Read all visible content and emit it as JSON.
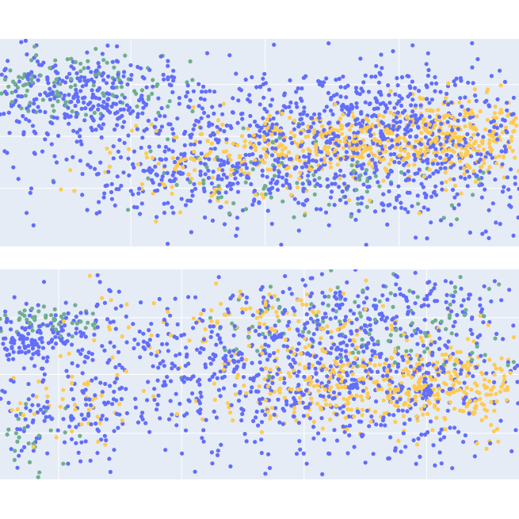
{
  "chart_data": [
    {
      "type": "scatter",
      "title": "",
      "xlabel": "",
      "ylabel": "",
      "xlim": [
        0,
        100
      ],
      "ylim": [
        0,
        100
      ],
      "grid": true,
      "legend": "none",
      "plot_bg": "#e5ecf6",
      "grid_color": "#ffffff",
      "x_gridlines": [
        25.2,
        51.1,
        76.9
      ],
      "y_gridlines": [
        28.0,
        53.0,
        78.0
      ],
      "series": [
        {
          "color": "#636efa",
          "clusters": [
            {
              "c": [
                14,
                73
              ],
              "s": [
                12,
                11
              ],
              "n": 320,
              "seed": 11
            },
            {
              "c": [
                55,
                48
              ],
              "s": [
                20,
                17
              ],
              "n": 420,
              "seed": 12
            },
            {
              "c": [
                80,
                45
              ],
              "s": [
                16,
                19
              ],
              "n": 420,
              "seed": 13
            },
            {
              "c": [
                38,
                35
              ],
              "s": [
                14,
                12
              ],
              "n": 180,
              "seed": 14
            },
            {
              "c": [
                70,
                70
              ],
              "s": [
                14,
                10
              ],
              "n": 160,
              "seed": 15
            }
          ]
        },
        {
          "color": "#fecb52",
          "clusters": [
            {
              "c": [
                70,
                50
              ],
              "s": [
                16,
                8
              ],
              "n": 360,
              "seed": 21
            },
            {
              "c": [
                90,
                53
              ],
              "s": [
                8,
                10
              ],
              "n": 220,
              "seed": 22
            },
            {
              "c": [
                45,
                35
              ],
              "s": [
                14,
                9
              ],
              "n": 100,
              "seed": 23
            }
          ]
        },
        {
          "color": "#6fae8e",
          "clusters": [
            {
              "c": [
                13,
                78
              ],
              "s": [
                11,
                8
              ],
              "n": 130,
              "seed": 31
            },
            {
              "c": [
                58,
                32
              ],
              "s": [
                18,
                10
              ],
              "n": 90,
              "seed": 32
            }
          ]
        }
      ]
    },
    {
      "type": "scatter",
      "title": "",
      "xlabel": "",
      "ylabel": "",
      "xlim": [
        0,
        100
      ],
      "ylim": [
        0,
        100
      ],
      "grid": true,
      "legend": "none",
      "plot_bg": "#e5ecf6",
      "grid_color": "#ffffff",
      "x_gridlines": [
        11.3,
        35.0,
        58.6,
        82.2
      ],
      "y_gridlines": [
        22.0,
        50.0,
        77.0
      ],
      "series": [
        {
          "color": "#636efa",
          "clusters": [
            {
              "c": [
                6,
                68
              ],
              "s": [
                6,
                7
              ],
              "n": 160,
              "seed": 41
            },
            {
              "c": [
                45,
                55
              ],
              "s": [
                20,
                18
              ],
              "n": 440,
              "seed": 42
            },
            {
              "c": [
                75,
                45
              ],
              "s": [
                17,
                20
              ],
              "n": 420,
              "seed": 43
            },
            {
              "c": [
                12,
                30
              ],
              "s": [
                10,
                13
              ],
              "n": 140,
              "seed": 44
            },
            {
              "c": [
                75,
                82
              ],
              "s": [
                15,
                7
              ],
              "n": 160,
              "seed": 45
            }
          ]
        },
        {
          "color": "#fecb52",
          "clusters": [
            {
              "c": [
                70,
                45
              ],
              "s": [
                16,
                10
              ],
              "n": 320,
              "seed": 51
            },
            {
              "c": [
                52,
                75
              ],
              "s": [
                16,
                8
              ],
              "n": 120,
              "seed": 52
            },
            {
              "c": [
                90,
                42
              ],
              "s": [
                8,
                12
              ],
              "n": 150,
              "seed": 53
            },
            {
              "c": [
                12,
                38
              ],
              "s": [
                8,
                10
              ],
              "n": 50,
              "seed": 54
            }
          ]
        },
        {
          "color": "#6fae8e",
          "clusters": [
            {
              "c": [
                8,
                75
              ],
              "s": [
                7,
                4
              ],
              "n": 60,
              "seed": 61
            },
            {
              "c": [
                72,
                74
              ],
              "s": [
                18,
                12
              ],
              "n": 120,
              "seed": 62
            },
            {
              "c": [
                6,
                20
              ],
              "s": [
                4,
                8
              ],
              "n": 25,
              "seed": 63
            }
          ]
        }
      ]
    }
  ]
}
